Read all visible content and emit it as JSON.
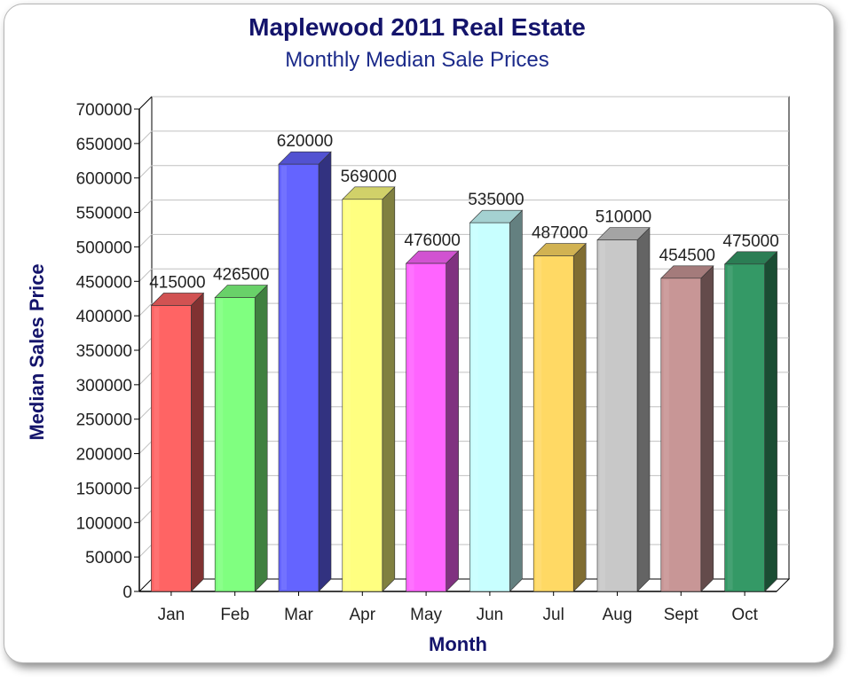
{
  "chart_data": {
    "type": "bar",
    "title": "Maplewood 2011 Real Estate",
    "subtitle": "Monthly Median Sale Prices",
    "xlabel": "Month",
    "ylabel": "Median Sales Price",
    "ylim": [
      0,
      700000
    ],
    "yticks": [
      0,
      50000,
      100000,
      150000,
      200000,
      250000,
      300000,
      350000,
      400000,
      450000,
      500000,
      550000,
      600000,
      650000,
      700000
    ],
    "categories": [
      "Jan",
      "Feb",
      "Mar",
      "Apr",
      "May",
      "Jun",
      "Jul",
      "Aug",
      "Sept",
      "Oct"
    ],
    "values": [
      415000,
      426500,
      620000,
      569000,
      476000,
      535000,
      487000,
      510000,
      454500,
      475000
    ],
    "colors": [
      "#ff6464",
      "#80ff80",
      "#6464ff",
      "#ffff80",
      "#ff64ff",
      "#c8ffff",
      "#ffd964",
      "#c8c8c8",
      "#c89696",
      "#349966"
    ],
    "grid": true,
    "legend": "none"
  }
}
